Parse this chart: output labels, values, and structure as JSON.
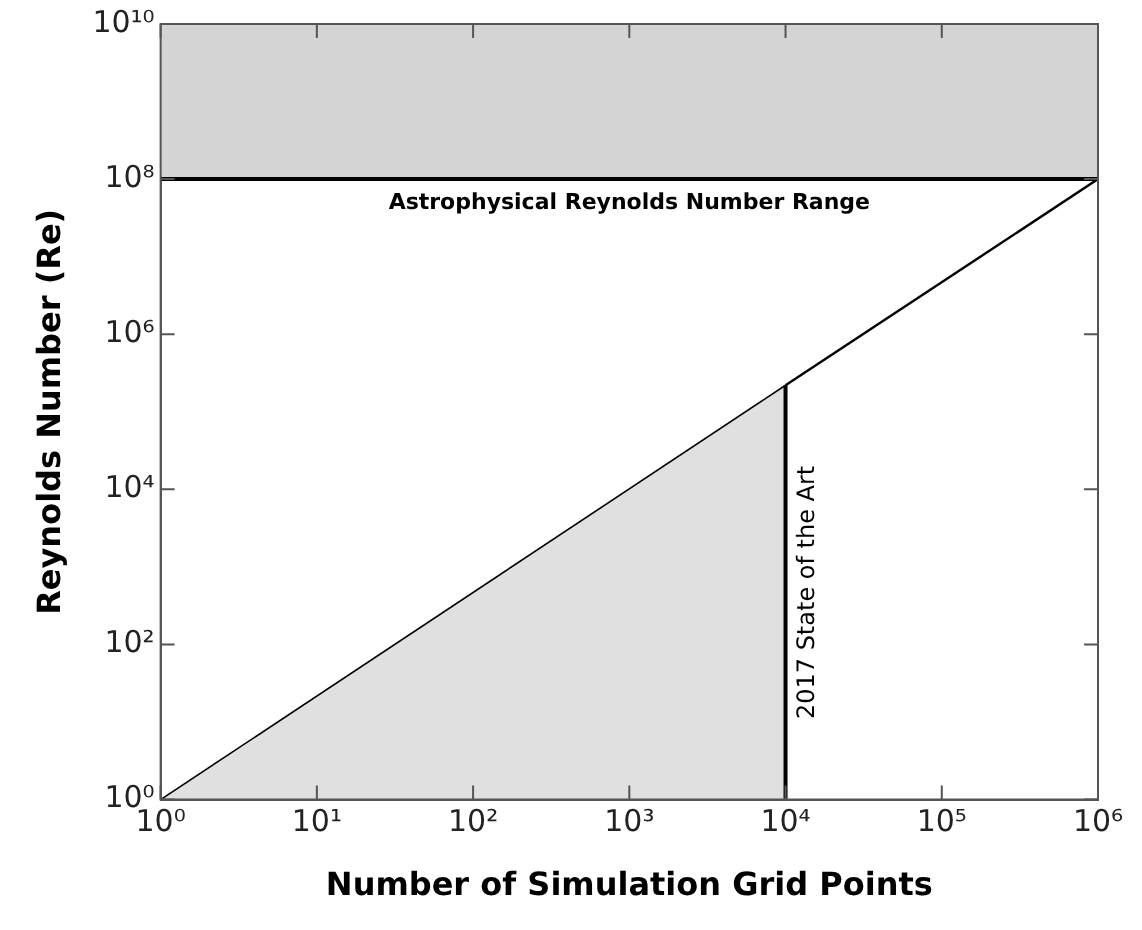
{
  "chart_data": {
    "type": "line",
    "xlabel": "Number of Simulation Grid Points",
    "ylabel": "Reynolds Number (Re)",
    "log": "xy",
    "grid": false,
    "legend": false,
    "series": [
      {
        "type": "area",
        "color": "#000000",
        "x": [
          1,
          10000
        ],
        "values": [
          1,
          220000
        ]
      },
      {
        "type": "line",
        "color": "#000000",
        "x": [
          10000,
          1000000
        ],
        "values": [
          220000,
          100000000
        ]
      }
    ],
    "xlim": [
      1,
      1000000
    ],
    "ylim": [
      1,
      10000000000
    ],
    "xticks": [
      {
        "value": 1,
        "label": "10⁰"
      },
      {
        "value": 10,
        "label": "10¹"
      },
      {
        "value": 100,
        "label": "10²"
      },
      {
        "value": 1000,
        "label": "10³"
      },
      {
        "value": 10000,
        "label": "10⁴"
      },
      {
        "value": 100000,
        "label": "10⁵"
      },
      {
        "value": 1000000,
        "label": "10⁶"
      }
    ],
    "yticks": [
      {
        "value": 1,
        "label": "10⁰"
      },
      {
        "value": 100,
        "label": "10²"
      },
      {
        "value": 10000,
        "label": "10⁴"
      },
      {
        "value": 1000000,
        "label": "10⁶"
      },
      {
        "value": 100000000,
        "label": "10⁸"
      },
      {
        "value": 10000000000,
        "label": "10¹⁰"
      }
    ],
    "ref_lines": [
      {
        "axis": "y",
        "value": 100000000,
        "label": "Astrophysical Reynolds Number Range"
      },
      {
        "axis": "x",
        "value": 10000,
        "label": "2017 State of the Art"
      }
    ],
    "bands": [
      {
        "axis": "y",
        "from": 100000000,
        "to": 10000000000,
        "color": "#d4d4d4"
      }
    ]
  }
}
